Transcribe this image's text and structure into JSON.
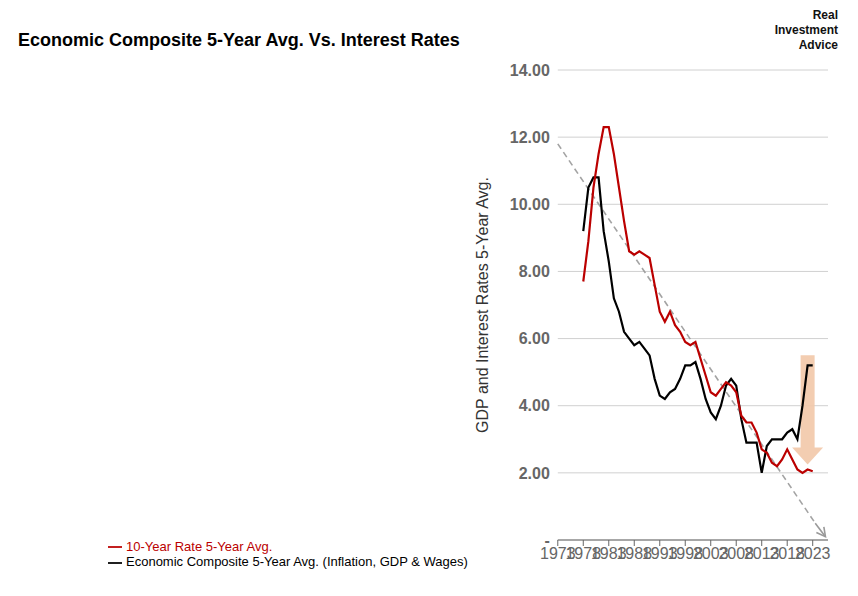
{
  "chart_data": {
    "type": "line",
    "title": "Economic Composite 5-Year Avg. Vs. Interest Rates",
    "y_label": "GDP and Interest Rates 5-Year Avg.",
    "x": [
      1978,
      1979,
      1980,
      1981,
      1982,
      1983,
      1984,
      1985,
      1986,
      1987,
      1988,
      1989,
      1990,
      1991,
      1992,
      1993,
      1994,
      1995,
      1996,
      1997,
      1998,
      1999,
      2000,
      2001,
      2002,
      2003,
      2004,
      2005,
      2006,
      2007,
      2008,
      2009,
      2010,
      2011,
      2012,
      2013,
      2014,
      2015,
      2016,
      2017,
      2018,
      2019,
      2020,
      2021,
      2022,
      2023
    ],
    "series": [
      {
        "name": "Economic Composite 5-Year Avg. (Inflation, GDP & Wages)",
        "color": "#000000",
        "values": [
          9.2,
          10.5,
          10.8,
          10.8,
          9.2,
          8.3,
          7.2,
          6.8,
          6.2,
          6.0,
          5.8,
          5.9,
          5.7,
          5.5,
          4.8,
          4.3,
          4.2,
          4.4,
          4.5,
          4.8,
          5.2,
          5.2,
          5.3,
          4.8,
          4.2,
          3.8,
          3.6,
          4.0,
          4.6,
          4.8,
          4.6,
          3.6,
          2.9,
          2.9,
          2.9,
          2.0,
          2.8,
          3.0,
          3.0,
          3.0,
          3.2,
          3.3,
          3.0,
          4.0,
          5.2,
          5.2
        ]
      },
      {
        "name": "10-Year Rate 5-Year Avg.",
        "color": "#bb0000",
        "values": [
          7.7,
          8.9,
          10.5,
          11.5,
          12.3,
          12.3,
          11.5,
          10.5,
          9.5,
          8.6,
          8.5,
          8.6,
          8.5,
          8.4,
          7.6,
          6.8,
          6.5,
          6.8,
          6.4,
          6.2,
          5.9,
          5.8,
          5.9,
          5.4,
          4.9,
          4.4,
          4.3,
          4.5,
          4.7,
          4.6,
          4.4,
          3.7,
          3.5,
          3.5,
          3.2,
          2.7,
          2.6,
          2.3,
          2.2,
          2.4,
          2.7,
          2.4,
          2.1,
          2.0,
          2.1,
          2.05
        ]
      }
    ],
    "xlim": [
      1973,
      2026
    ],
    "xticks": [
      1973,
      1978,
      1983,
      1988,
      1993,
      1998,
      2003,
      2008,
      2013,
      2018,
      2023
    ],
    "ylim": [
      0,
      14.0
    ],
    "yticks": [
      {
        "value": 0,
        "label": "-"
      },
      {
        "value": 2.0,
        "label": "2.00"
      },
      {
        "value": 4.0,
        "label": "4.00"
      },
      {
        "value": 6.0,
        "label": "6.00"
      },
      {
        "value": 8.0,
        "label": "8.00"
      },
      {
        "value": 10.0,
        "label": "10.00"
      },
      {
        "value": 12.0,
        "label": "12.00"
      },
      {
        "value": 14.0,
        "label": "14.00"
      }
    ],
    "grid": true,
    "legend": "lower left",
    "trend_line": {
      "x": [
        1973,
        2023.5,
        2025.5
      ],
      "y": [
        11.8,
        0.5,
        0.1
      ],
      "color": "#999999",
      "line_style": "dashed"
    },
    "arrow": {
      "x": 2022.0,
      "y": [
        5.5,
        2.25
      ],
      "color": "#f2c8a8"
    },
    "annotations": [
      "Real\nInvestment\nAdvice"
    ]
  }
}
